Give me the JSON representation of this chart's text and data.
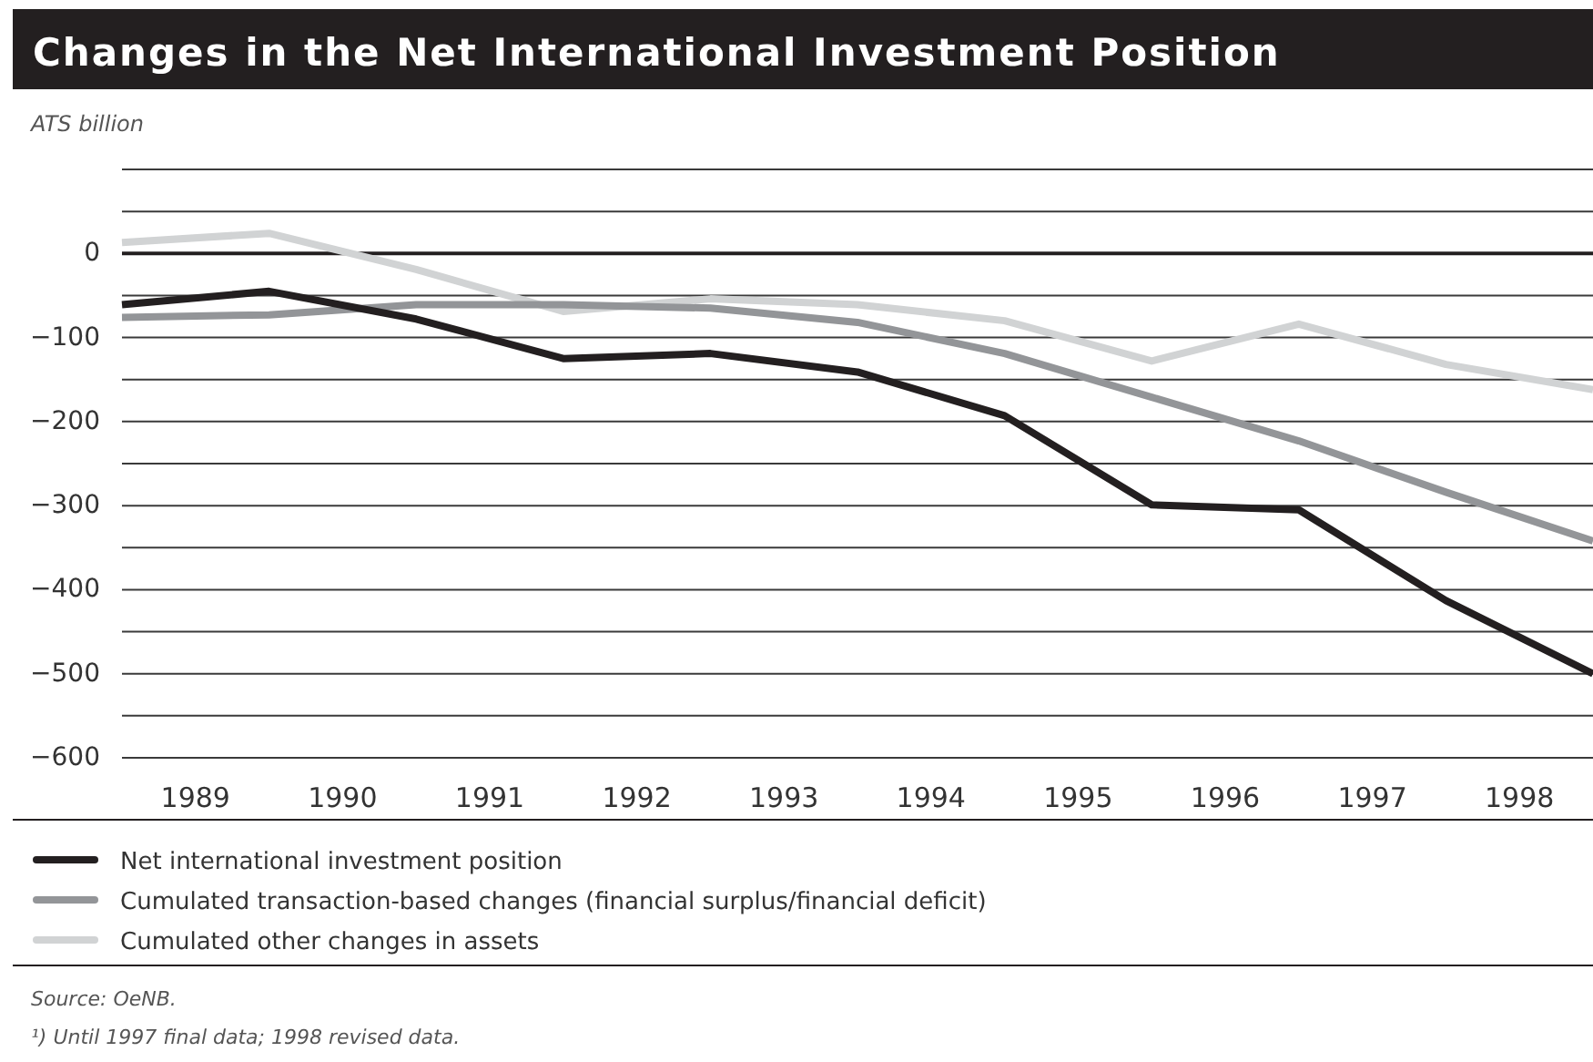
{
  "chart_data": {
    "type": "line",
    "title": "Changes in the Net International Investment Position",
    "ylabel": "ATS billion",
    "x": [
      1989,
      1990,
      1991,
      1992,
      1993,
      1994,
      1995,
      1996,
      1997,
      1998,
      1999
    ],
    "xlim": [
      1989,
      1999
    ],
    "xticks": [
      {
        "value": 1989.5,
        "label": "1989"
      },
      {
        "value": 1990.5,
        "label": "1990"
      },
      {
        "value": 1991.5,
        "label": "1991"
      },
      {
        "value": 1992.5,
        "label": "1992"
      },
      {
        "value": 1993.5,
        "label": "1993"
      },
      {
        "value": 1994.5,
        "label": "1994"
      },
      {
        "value": 1995.5,
        "label": "1995"
      },
      {
        "value": 1996.5,
        "label": "1996"
      },
      {
        "value": 1997.5,
        "label": "1997"
      },
      {
        "value": 1998.5,
        "label": "1998"
      }
    ],
    "ylim": [
      -600,
      100
    ],
    "yticks": [
      {
        "value": 100,
        "label": null
      },
      {
        "value": 50,
        "label": null
      },
      0,
      {
        "value": -50,
        "label": null
      },
      {
        "value": -100,
        "label": "−100"
      },
      {
        "value": -150,
        "label": null
      },
      {
        "value": -200,
        "label": "−200"
      },
      {
        "value": -250,
        "label": null
      },
      {
        "value": -300,
        "label": "−300"
      },
      {
        "value": -350,
        "label": null
      },
      {
        "value": -400,
        "label": "−400"
      },
      {
        "value": -450,
        "label": null
      },
      {
        "value": -500,
        "label": "−500"
      },
      {
        "value": -550,
        "label": null
      },
      {
        "value": -600,
        "label": "−600"
      }
    ],
    "grid": "y",
    "legend": "bottom",
    "line_style": "solid",
    "marker": "none",
    "series": [
      {
        "name": "Net international investment position",
        "color": "#231f20",
        "values": [
          -61,
          -45,
          -78,
          -125,
          -119,
          -141,
          -193,
          -299,
          -305,
          -413,
          -500
        ]
      },
      {
        "name": "Cumulated transaction-based changes (financial surplus/financial deficit)",
        "color": "#939598",
        "values": [
          -76,
          -73,
          -61,
          -61,
          -65,
          -82,
          -119,
          -171,
          -223,
          -284,
          -342
        ]
      },
      {
        "name": "Cumulated other changes in assets",
        "color": "#d1d3d4",
        "values": [
          13,
          24,
          -19,
          -69,
          -54,
          -61,
          -80,
          -128,
          -84,
          -132,
          -162
        ]
      }
    ],
    "annotations": [
      "Source: OeNB.",
      "¹) Until 1997 final data; 1998 revised data."
    ]
  }
}
